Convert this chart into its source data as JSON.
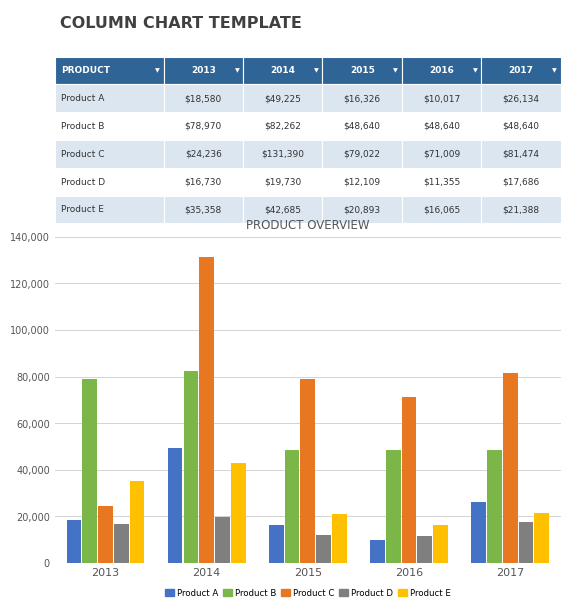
{
  "title": "COLUMN CHART TEMPLATE",
  "chart_title": "PRODUCT OVERVIEW",
  "years": [
    2013,
    2014,
    2015,
    2016,
    2017
  ],
  "products": [
    "Product A",
    "Product B",
    "Product C",
    "Product D",
    "Product E"
  ],
  "data": {
    "Product A": [
      18580,
      49225,
      16326,
      10017,
      26134
    ],
    "Product B": [
      78970,
      82262,
      48640,
      48640,
      48640
    ],
    "Product C": [
      24236,
      131390,
      79022,
      71009,
      81474
    ],
    "Product D": [
      16730,
      19730,
      12109,
      11355,
      17686
    ],
    "Product E": [
      35358,
      42685,
      20893,
      16065,
      21388
    ]
  },
  "bar_colors": {
    "Product A": "#4472C4",
    "Product B": "#7AB648",
    "Product C": "#E87722",
    "Product D": "#7F7F7F",
    "Product E": "#FFC000"
  },
  "table_header_bg": "#2E6496",
  "table_header_fg": "#FFFFFF",
  "table_odd_row_bg": "#DCE6F1",
  "table_even_row_bg": "#FFFFFF",
  "ylim": [
    0,
    140000
  ],
  "yticks": [
    0,
    20000,
    40000,
    60000,
    80000,
    100000,
    120000,
    140000
  ],
  "background_color": "#FFFFFF",
  "grid_color": "#CCCCCC",
  "title_color": "#404040"
}
